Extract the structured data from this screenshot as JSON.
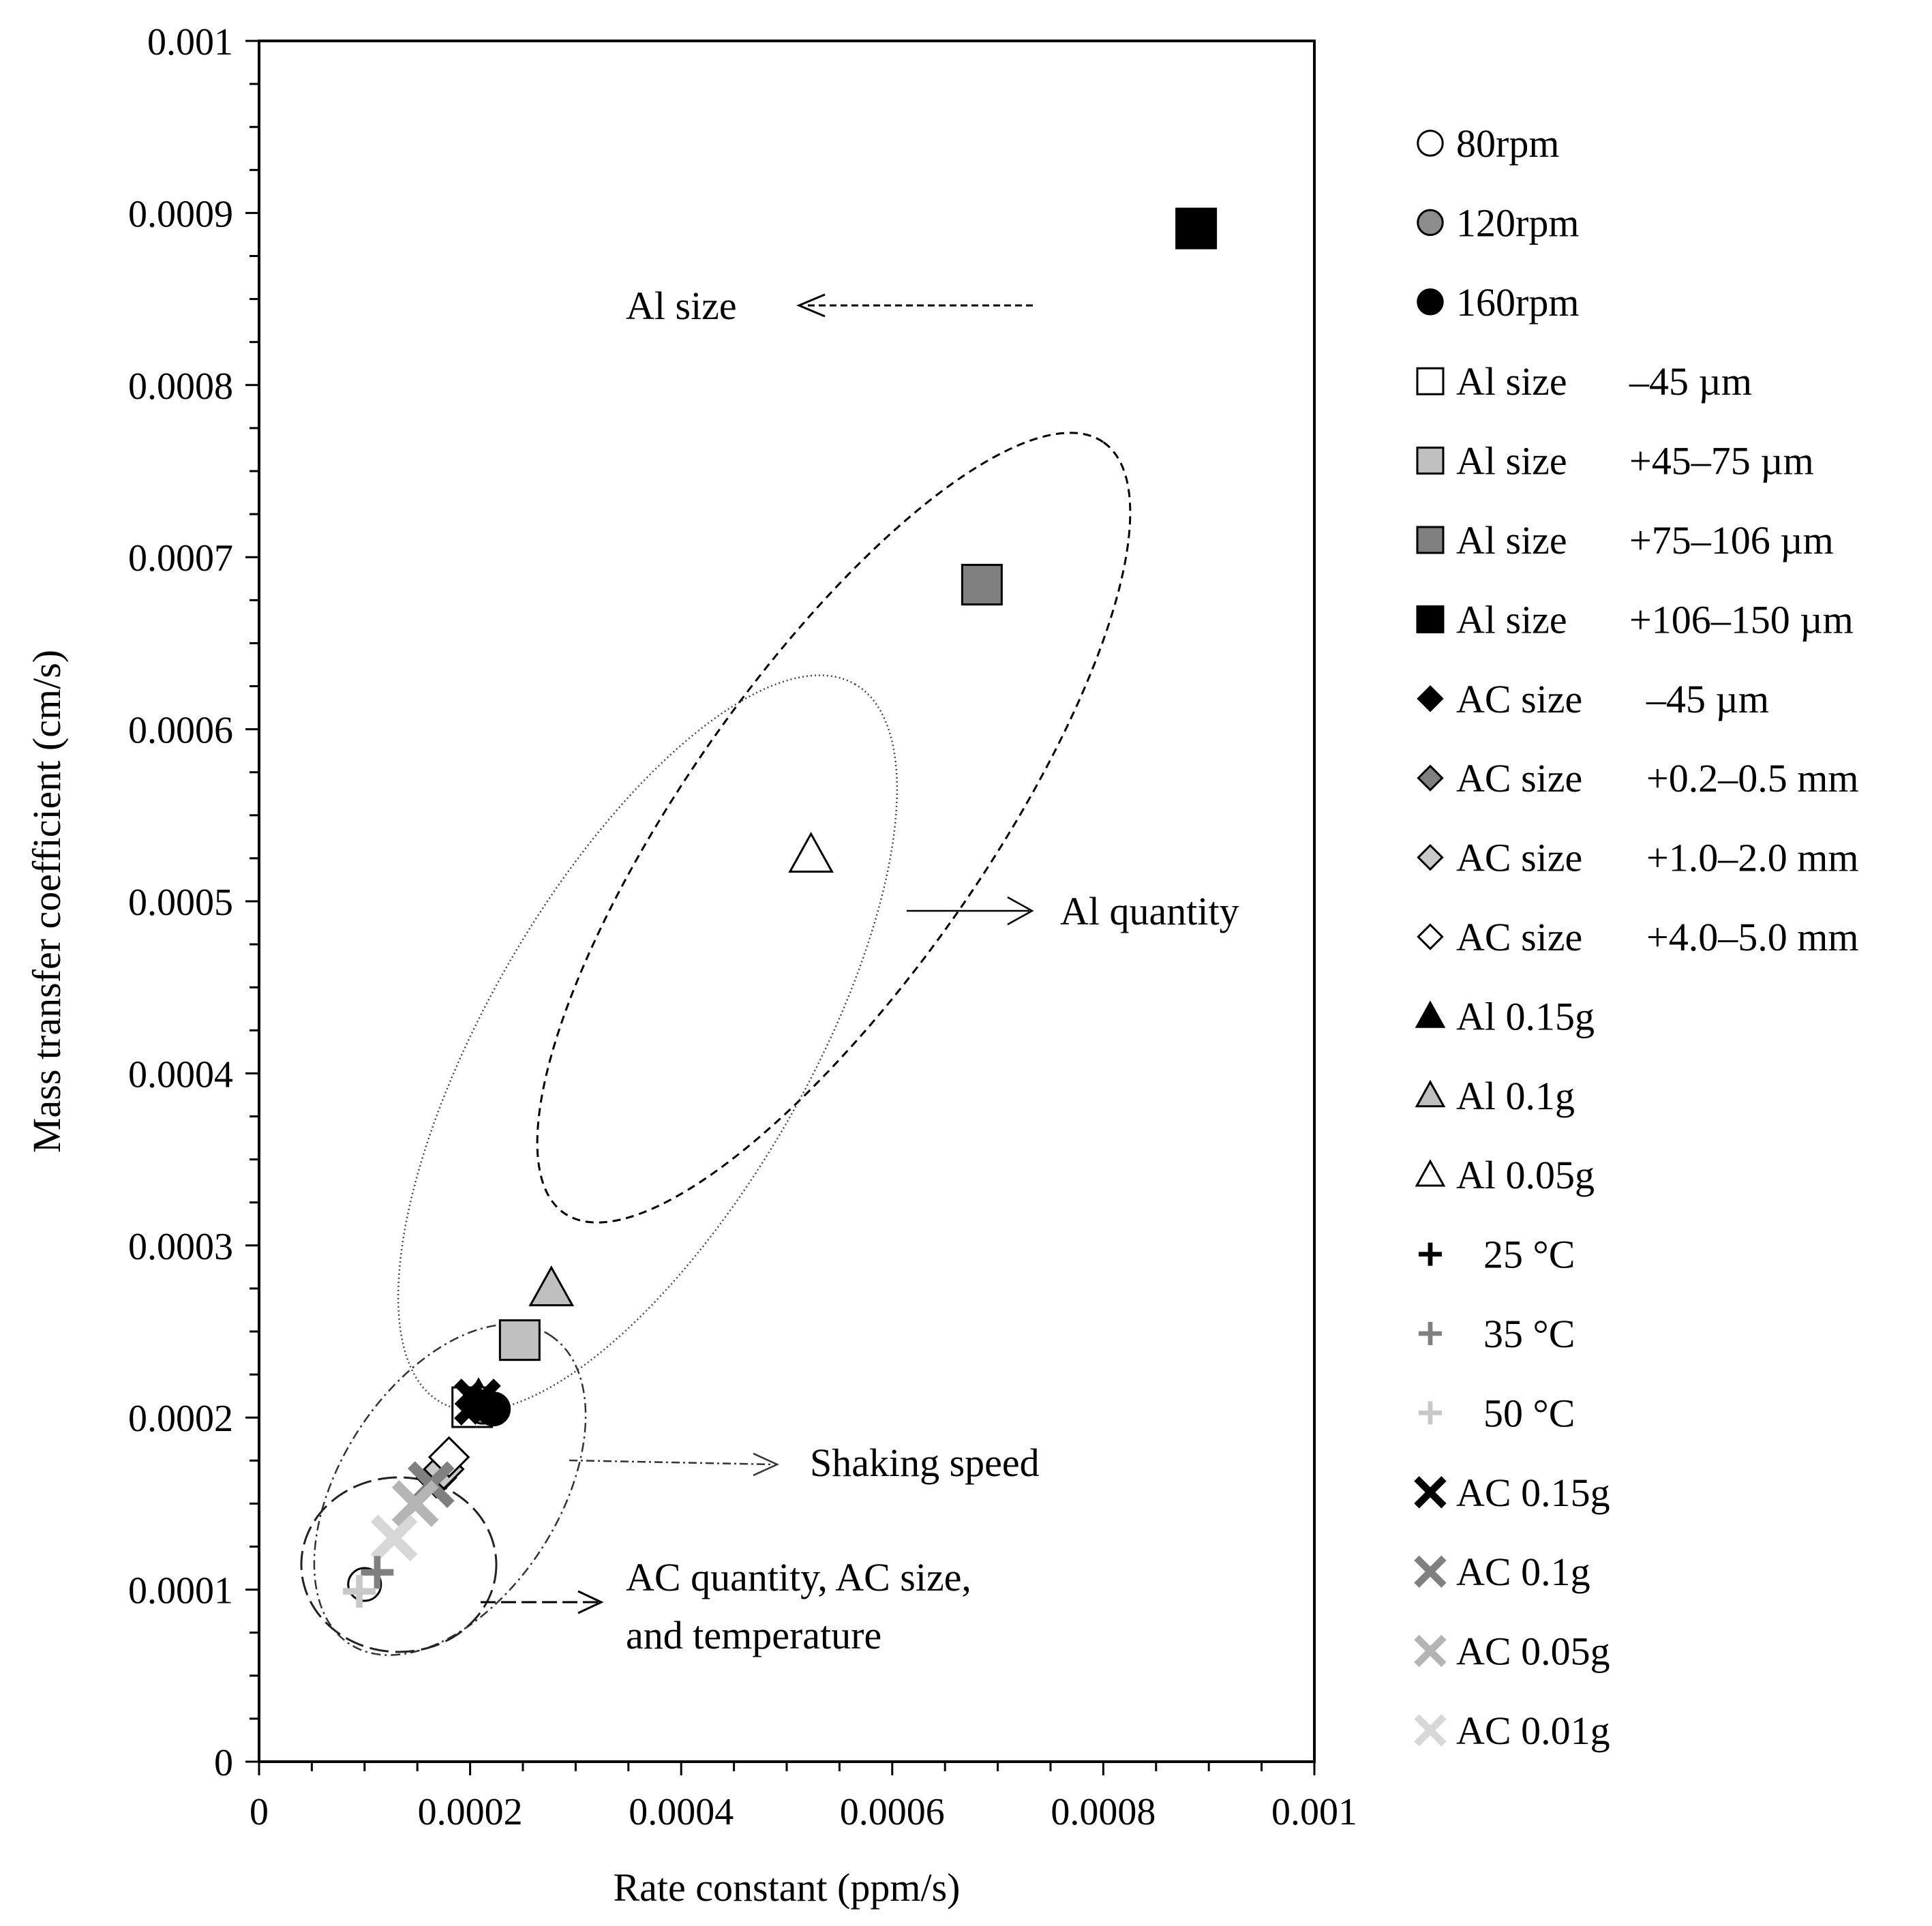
{
  "chart_data": {
    "type": "scatter",
    "title": "",
    "xlabel": "Rate constant (ppm/s)",
    "ylabel": "Mass transfer coefficient (cm/s)",
    "xlim": [
      0,
      0.001
    ],
    "ylim": [
      0,
      0.001
    ],
    "grid": false,
    "legend": "right",
    "x_ticks": [
      "0",
      "0.0002",
      "0.0004",
      "0.0006",
      "0.0008",
      "0.001"
    ],
    "y_ticks": [
      "0",
      "0.0001",
      "0.0002",
      "0.0003",
      "0.0004",
      "0.0005",
      "0.0006",
      "0.0007",
      "0.0008",
      "0.0009",
      "0.001"
    ],
    "series": [
      {
        "name": "80rpm",
        "label": "80rpm",
        "marker": "circle",
        "fill": "#ffffff",
        "points": [
          [
            0.0001,
            0.000103
          ]
        ]
      },
      {
        "name": "120rpm",
        "label": "120rpm",
        "marker": "circle",
        "fill": "#8c8c8c",
        "points": [
          [
            0.000212,
            0.000206
          ]
        ]
      },
      {
        "name": "160rpm",
        "label": "160rpm",
        "marker": "circle",
        "fill": "#000000",
        "points": [
          [
            0.000222,
            0.000205
          ]
        ]
      },
      {
        "name": "Al size –45 µm",
        "label": "Al size",
        "size": "–45 µm",
        "marker": "square",
        "fill": "#ffffff",
        "points": [
          [
            0.000202,
            0.000206
          ]
        ]
      },
      {
        "name": "Al size +45–75 µm",
        "label": "Al size",
        "size": "+45–75 µm",
        "marker": "square",
        "fill": "#c0c0c0",
        "points": [
          [
            0.000247,
            0.000245
          ]
        ]
      },
      {
        "name": "Al size +75–106 µm",
        "label": "Al size",
        "size": "+75–106 µm",
        "marker": "square",
        "fill": "#808080",
        "points": [
          [
            0.000685,
            0.000684
          ]
        ]
      },
      {
        "name": "Al size +106–150 µm",
        "label": "Al size",
        "size": "+106–150 µm",
        "marker": "square",
        "fill": "#000000",
        "points": [
          [
            0.000888,
            0.000891
          ]
        ]
      },
      {
        "name": "AC size –45 µm",
        "label": "AC size",
        "size": "–45 µm",
        "marker": "diamond",
        "fill": "#000000",
        "points": [
          [
            0.000205,
            0.000208
          ]
        ]
      },
      {
        "name": "AC size +0.2–0.5 mm",
        "label": "AC size",
        "size": "+0.2–0.5 mm",
        "marker": "diamond",
        "fill": "#808080",
        "points": [
          [
            0.000168,
            0.000165
          ]
        ]
      },
      {
        "name": "AC size +1.0–2.0 mm",
        "label": "AC size",
        "size": "+1.0–2.0 mm",
        "marker": "diamond",
        "fill": "#c8c8c8",
        "points": [
          [
            0.000175,
            0.00017
          ]
        ]
      },
      {
        "name": "AC size +4.0–5.0 mm",
        "label": "AC size",
        "size": "+4.0–5.0 mm",
        "marker": "diamond",
        "fill": "#ffffff",
        "points": [
          [
            0.00018,
            0.000177
          ]
        ]
      },
      {
        "name": "Al 0.15g",
        "label": "Al 0.15g",
        "marker": "triangle",
        "fill": "#000000",
        "points": [
          [
            0.000208,
            0.00021
          ]
        ]
      },
      {
        "name": "Al 0.1g",
        "label": "Al 0.1g",
        "marker": "triangle",
        "fill": "#bfbfbf",
        "points": [
          [
            0.000277,
            0.000275
          ]
        ]
      },
      {
        "name": "Al 0.05g",
        "label": "Al 0.05g",
        "marker": "triangle",
        "fill": "#ffffff",
        "points": [
          [
            0.000523,
            0.000527
          ]
        ]
      },
      {
        "name": "25 °C",
        "label": "25 °C",
        "marker": "plus",
        "fill": "#000000",
        "points": [
          [
            0.000205,
            0.000208
          ]
        ]
      },
      {
        "name": "35 °C",
        "label": "35 °C",
        "marker": "plus",
        "fill": "#808080",
        "points": [
          [
            0.000112,
            0.00011
          ]
        ]
      },
      {
        "name": "50 °C",
        "label": "50 °C",
        "marker": "plus",
        "fill": "#c8c8c8",
        "points": [
          [
            9.5e-05,
            9.9e-05
          ]
        ]
      },
      {
        "name": "AC 0.15g",
        "label": "AC 0.15g",
        "marker": "x",
        "fill": "#000000",
        "points": [
          [
            0.000207,
            0.000209
          ]
        ]
      },
      {
        "name": "AC 0.1g",
        "label": "AC 0.1g",
        "marker": "x",
        "fill": "#808080",
        "points": [
          [
            0.000163,
            0.000161
          ]
        ]
      },
      {
        "name": "AC 0.05g",
        "label": "AC 0.05g",
        "marker": "x",
        "fill": "#b4b4b4",
        "points": [
          [
            0.000148,
            0.00015
          ]
        ]
      },
      {
        "name": "AC 0.01g",
        "label": "AC 0.01g",
        "marker": "x",
        "fill": "#d7d7d7",
        "points": [
          [
            0.000128,
            0.00013
          ]
        ]
      }
    ],
    "annotations": [
      {
        "key": "al_size",
        "text": "Al size"
      },
      {
        "key": "al_quantity",
        "text": "Al quantity"
      },
      {
        "key": "shaking_speed",
        "text": "Shaking speed"
      },
      {
        "key": "ac_group",
        "lines": [
          "AC quantity, AC size,",
          "and temperature"
        ]
      }
    ]
  }
}
